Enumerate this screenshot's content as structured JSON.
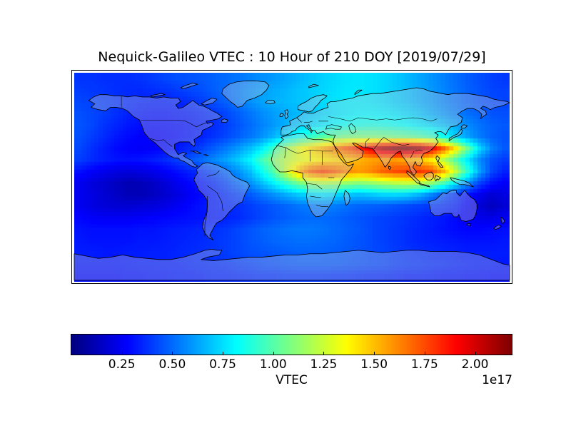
{
  "figure": {
    "title": "Nequick-Galileo VTEC : 10 Hour of 210 DOY [2019/07/29]",
    "background": "#ffffff"
  },
  "map": {
    "projection": "equirectangular",
    "lon_range": [
      -180,
      180
    ],
    "lat_range": [
      -90,
      90
    ],
    "coastline_color": "#000000",
    "land_wash_color": "rgba(205,205,214,0.33)"
  },
  "colorbar": {
    "label": "VTEC",
    "offset_label": "1e17",
    "colormap": "jet",
    "vmin": 0.0,
    "vmax": 2.182,
    "ticks": [
      {
        "value": 0.25,
        "label": "0.25"
      },
      {
        "value": 0.5,
        "label": "0.50"
      },
      {
        "value": 0.75,
        "label": "0.75"
      },
      {
        "value": 1.0,
        "label": "1.00"
      },
      {
        "value": 1.25,
        "label": "1.25"
      },
      {
        "value": 1.5,
        "label": "1.50"
      },
      {
        "value": 1.75,
        "label": "1.75"
      },
      {
        "value": 2.0,
        "label": "2.00"
      }
    ]
  },
  "chart_data": {
    "type": "heatmap",
    "title": "Nequick-Galileo VTEC : 10 Hour of 210 DOY [2019/07/29]",
    "colorbar_label": "VTEC",
    "value_scale": "1e17",
    "colormap": "jet",
    "vmin": 0.0,
    "vmax": 2.182,
    "lon_centers": [
      -175,
      -165,
      -155,
      -145,
      -135,
      -125,
      -115,
      -105,
      -95,
      -85,
      -75,
      -65,
      -55,
      -45,
      -35,
      -25,
      -15,
      -5,
      5,
      15,
      25,
      35,
      45,
      55,
      65,
      75,
      85,
      95,
      105,
      115,
      125,
      135,
      145,
      155,
      165,
      175
    ],
    "lat_centers": [
      85,
      75,
      65,
      55,
      45,
      35,
      25,
      15,
      5,
      -5,
      -15,
      -25,
      -35,
      -45,
      -55,
      -65,
      -75,
      -85
    ],
    "values": [
      [
        0.38,
        0.38,
        0.37,
        0.37,
        0.37,
        0.38,
        0.4,
        0.42,
        0.44,
        0.45,
        0.46,
        0.48,
        0.5,
        0.52,
        0.55,
        0.58,
        0.6,
        0.63,
        0.66,
        0.69,
        0.72,
        0.74,
        0.76,
        0.77,
        0.76,
        0.74,
        0.71,
        0.67,
        0.63,
        0.59,
        0.55,
        0.51,
        0.47,
        0.44,
        0.41,
        0.39
      ],
      [
        0.4,
        0.39,
        0.38,
        0.37,
        0.36,
        0.36,
        0.37,
        0.38,
        0.4,
        0.42,
        0.44,
        0.47,
        0.5,
        0.54,
        0.58,
        0.61,
        0.64,
        0.66,
        0.69,
        0.71,
        0.73,
        0.75,
        0.77,
        0.77,
        0.76,
        0.74,
        0.71,
        0.68,
        0.64,
        0.6,
        0.56,
        0.52,
        0.48,
        0.45,
        0.42,
        0.41
      ],
      [
        0.42,
        0.41,
        0.4,
        0.38,
        0.36,
        0.35,
        0.34,
        0.34,
        0.35,
        0.37,
        0.4,
        0.44,
        0.48,
        0.53,
        0.58,
        0.62,
        0.65,
        0.67,
        0.69,
        0.71,
        0.74,
        0.76,
        0.78,
        0.78,
        0.77,
        0.75,
        0.72,
        0.69,
        0.65,
        0.61,
        0.56,
        0.52,
        0.48,
        0.45,
        0.43,
        0.42
      ],
      [
        0.44,
        0.42,
        0.4,
        0.37,
        0.34,
        0.32,
        0.31,
        0.31,
        0.32,
        0.33,
        0.35,
        0.38,
        0.42,
        0.47,
        0.52,
        0.57,
        0.61,
        0.64,
        0.67,
        0.7,
        0.73,
        0.76,
        0.78,
        0.8,
        0.8,
        0.79,
        0.77,
        0.74,
        0.7,
        0.65,
        0.6,
        0.55,
        0.51,
        0.48,
        0.45,
        0.44
      ],
      [
        0.45,
        0.42,
        0.38,
        0.35,
        0.32,
        0.3,
        0.29,
        0.29,
        0.3,
        0.31,
        0.33,
        0.36,
        0.4,
        0.45,
        0.5,
        0.55,
        0.6,
        0.65,
        0.7,
        0.74,
        0.78,
        0.82,
        0.85,
        0.87,
        0.88,
        0.87,
        0.85,
        0.82,
        0.78,
        0.74,
        0.69,
        0.63,
        0.57,
        0.52,
        0.48,
        0.46
      ],
      [
        0.44,
        0.4,
        0.36,
        0.32,
        0.29,
        0.27,
        0.27,
        0.28,
        0.29,
        0.31,
        0.34,
        0.38,
        0.42,
        0.47,
        0.52,
        0.58,
        0.66,
        0.75,
        0.85,
        0.93,
        1.0,
        1.05,
        1.08,
        1.1,
        1.1,
        1.09,
        1.07,
        1.05,
        1.02,
        0.96,
        0.86,
        0.73,
        0.62,
        0.54,
        0.48,
        0.45
      ],
      [
        0.42,
        0.37,
        0.33,
        0.29,
        0.27,
        0.26,
        0.27,
        0.29,
        0.32,
        0.36,
        0.41,
        0.47,
        0.53,
        0.6,
        0.68,
        0.78,
        0.95,
        1.15,
        1.3,
        1.42,
        1.52,
        1.62,
        1.72,
        1.82,
        1.95,
        2.08,
        2.15,
        2.17,
        2.1,
        1.95,
        1.7,
        1.4,
        1.05,
        0.75,
        0.55,
        0.46
      ],
      [
        0.4,
        0.36,
        0.33,
        0.31,
        0.3,
        0.31,
        0.33,
        0.36,
        0.4,
        0.45,
        0.5,
        0.56,
        0.62,
        0.7,
        0.8,
        0.95,
        1.1,
        1.22,
        1.3,
        1.36,
        1.4,
        1.44,
        1.48,
        1.52,
        1.56,
        1.58,
        1.58,
        1.55,
        1.5,
        1.4,
        1.22,
        1.0,
        0.78,
        0.58,
        0.45,
        0.4
      ],
      [
        0.3,
        0.26,
        0.23,
        0.21,
        0.2,
        0.21,
        0.23,
        0.26,
        0.3,
        0.34,
        0.38,
        0.43,
        0.5,
        0.58,
        0.68,
        0.83,
        1.0,
        1.25,
        1.5,
        1.7,
        1.78,
        1.72,
        1.62,
        1.58,
        1.62,
        1.7,
        1.75,
        1.78,
        1.8,
        1.75,
        1.55,
        1.25,
        0.92,
        0.63,
        0.43,
        0.34
      ],
      [
        0.24,
        0.2,
        0.17,
        0.14,
        0.11,
        0.12,
        0.15,
        0.19,
        0.24,
        0.28,
        0.32,
        0.36,
        0.42,
        0.5,
        0.58,
        0.68,
        0.8,
        0.93,
        1.06,
        1.16,
        1.21,
        1.19,
        1.14,
        1.11,
        1.14,
        1.19,
        1.23,
        1.25,
        1.23,
        1.14,
        0.99,
        0.79,
        0.59,
        0.42,
        0.31,
        0.26
      ],
      [
        0.24,
        0.21,
        0.18,
        0.15,
        0.12,
        0.12,
        0.14,
        0.17,
        0.21,
        0.25,
        0.29,
        0.33,
        0.37,
        0.41,
        0.46,
        0.52,
        0.58,
        0.64,
        0.7,
        0.74,
        0.76,
        0.74,
        0.7,
        0.68,
        0.7,
        0.73,
        0.74,
        0.72,
        0.66,
        0.56,
        0.46,
        0.38,
        0.31,
        0.24,
        0.18,
        0.21
      ],
      [
        0.24,
        0.21,
        0.19,
        0.18,
        0.18,
        0.19,
        0.2,
        0.22,
        0.25,
        0.28,
        0.31,
        0.33,
        0.35,
        0.37,
        0.4,
        0.43,
        0.46,
        0.49,
        0.52,
        0.54,
        0.55,
        0.54,
        0.51,
        0.49,
        0.48,
        0.47,
        0.45,
        0.43,
        0.41,
        0.39,
        0.37,
        0.34,
        0.26,
        0.19,
        0.14,
        0.18
      ],
      [
        0.28,
        0.26,
        0.25,
        0.25,
        0.25,
        0.26,
        0.27,
        0.28,
        0.29,
        0.3,
        0.31,
        0.32,
        0.34,
        0.36,
        0.39,
        0.42,
        0.45,
        0.47,
        0.49,
        0.5,
        0.5,
        0.49,
        0.47,
        0.45,
        0.43,
        0.41,
        0.4,
        0.38,
        0.36,
        0.34,
        0.32,
        0.29,
        0.26,
        0.23,
        0.22,
        0.25
      ],
      [
        0.31,
        0.3,
        0.3,
        0.3,
        0.3,
        0.31,
        0.31,
        0.32,
        0.33,
        0.34,
        0.35,
        0.37,
        0.39,
        0.42,
        0.45,
        0.48,
        0.5,
        0.52,
        0.53,
        0.53,
        0.52,
        0.5,
        0.48,
        0.46,
        0.43,
        0.41,
        0.39,
        0.37,
        0.35,
        0.33,
        0.31,
        0.29,
        0.28,
        0.28,
        0.29,
        0.3
      ],
      [
        0.32,
        0.31,
        0.31,
        0.31,
        0.31,
        0.32,
        0.32,
        0.33,
        0.34,
        0.35,
        0.36,
        0.38,
        0.4,
        0.42,
        0.45,
        0.47,
        0.49,
        0.5,
        0.51,
        0.51,
        0.5,
        0.49,
        0.47,
        0.45,
        0.43,
        0.41,
        0.39,
        0.37,
        0.35,
        0.34,
        0.33,
        0.32,
        0.31,
        0.31,
        0.31,
        0.32
      ],
      [
        0.33,
        0.33,
        0.32,
        0.32,
        0.33,
        0.33,
        0.34,
        0.34,
        0.35,
        0.36,
        0.37,
        0.38,
        0.4,
        0.42,
        0.44,
        0.45,
        0.46,
        0.47,
        0.48,
        0.48,
        0.48,
        0.47,
        0.46,
        0.45,
        0.43,
        0.42,
        0.4,
        0.38,
        0.37,
        0.36,
        0.35,
        0.34,
        0.33,
        0.33,
        0.33,
        0.33
      ],
      [
        0.32,
        0.32,
        0.32,
        0.32,
        0.32,
        0.33,
        0.33,
        0.34,
        0.34,
        0.35,
        0.36,
        0.37,
        0.38,
        0.4,
        0.41,
        0.43,
        0.44,
        0.45,
        0.46,
        0.46,
        0.46,
        0.46,
        0.45,
        0.44,
        0.43,
        0.42,
        0.4,
        0.39,
        0.38,
        0.37,
        0.36,
        0.35,
        0.34,
        0.33,
        0.33,
        0.32
      ],
      [
        0.3,
        0.3,
        0.3,
        0.3,
        0.31,
        0.31,
        0.32,
        0.32,
        0.33,
        0.33,
        0.34,
        0.35,
        0.35,
        0.36,
        0.37,
        0.38,
        0.38,
        0.39,
        0.39,
        0.39,
        0.39,
        0.38,
        0.38,
        0.37,
        0.36,
        0.36,
        0.35,
        0.34,
        0.34,
        0.33,
        0.32,
        0.32,
        0.31,
        0.31,
        0.3,
        0.3
      ]
    ]
  }
}
